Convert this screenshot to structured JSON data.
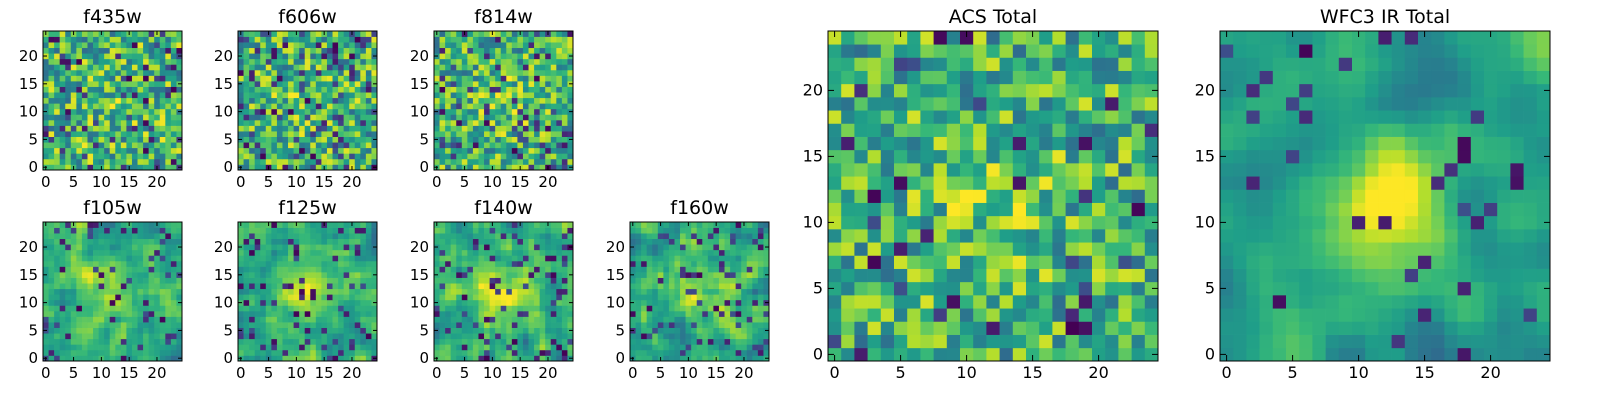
{
  "chart_data": [
    {
      "type": "heatmap",
      "title": "f435w",
      "xlim": [
        0,
        24
      ],
      "ylim": [
        0,
        24
      ],
      "xticks": [
        "0",
        "5",
        "10",
        "15",
        "20"
      ],
      "yticks": [
        "0",
        "5",
        "10",
        "15",
        "20"
      ],
      "colormap": "viridis",
      "seed": 11,
      "smooth": 0,
      "blob": 0.05,
      "dark": 0.1
    },
    {
      "type": "heatmap",
      "title": "f606w",
      "xlim": [
        0,
        24
      ],
      "ylim": [
        0,
        24
      ],
      "xticks": [
        "0",
        "5",
        "10",
        "15",
        "20"
      ],
      "yticks": [
        "0",
        "5",
        "10",
        "15",
        "20"
      ],
      "colormap": "viridis",
      "seed": 23,
      "smooth": 0,
      "blob": 0.1,
      "dark": 0.12
    },
    {
      "type": "heatmap",
      "title": "f814w",
      "xlim": [
        0,
        24
      ],
      "ylim": [
        0,
        24
      ],
      "xticks": [
        "0",
        "5",
        "10",
        "15",
        "20"
      ],
      "yticks": [
        "0",
        "5",
        "10",
        "15",
        "20"
      ],
      "colormap": "viridis",
      "seed": 37,
      "smooth": 0,
      "blob": 0.15,
      "dark": 0.1
    },
    {
      "type": "heatmap",
      "title": "f105w",
      "xlim": [
        0,
        24
      ],
      "ylim": [
        0,
        24
      ],
      "xticks": [
        "0",
        "5",
        "10",
        "15",
        "20"
      ],
      "yticks": [
        "0",
        "5",
        "10",
        "15",
        "20"
      ],
      "colormap": "viridis",
      "seed": 41,
      "smooth": 1,
      "blob": 0.35,
      "dark": 0.1
    },
    {
      "type": "heatmap",
      "title": "f125w",
      "xlim": [
        0,
        24
      ],
      "ylim": [
        0,
        24
      ],
      "xticks": [
        "0",
        "5",
        "10",
        "15",
        "20"
      ],
      "yticks": [
        "0",
        "5",
        "10",
        "15",
        "20"
      ],
      "colormap": "viridis",
      "seed": 53,
      "smooth": 1,
      "blob": 0.4,
      "dark": 0.1
    },
    {
      "type": "heatmap",
      "title": "f140w",
      "xlim": [
        0,
        24
      ],
      "ylim": [
        0,
        24
      ],
      "xticks": [
        "0",
        "5",
        "10",
        "15",
        "20"
      ],
      "yticks": [
        "0",
        "5",
        "10",
        "15",
        "20"
      ],
      "colormap": "viridis",
      "seed": 67,
      "smooth": 1,
      "blob": 0.4,
      "dark": 0.12
    },
    {
      "type": "heatmap",
      "title": "f160w",
      "xlim": [
        0,
        24
      ],
      "ylim": [
        0,
        24
      ],
      "xticks": [
        "0",
        "5",
        "10",
        "15",
        "20"
      ],
      "yticks": [
        "0",
        "5",
        "10",
        "15",
        "20"
      ],
      "colormap": "viridis",
      "seed": 79,
      "smooth": 1,
      "blob": 0.4,
      "dark": 0.1
    },
    {
      "type": "heatmap",
      "title": "ACS Total",
      "xlim": [
        0,
        24
      ],
      "ylim": [
        0,
        24
      ],
      "xticks": [
        "0",
        "5",
        "10",
        "15",
        "20"
      ],
      "yticks": [
        "0",
        "5",
        "10",
        "15",
        "20"
      ],
      "colormap": "viridis",
      "seed": 97,
      "smooth": 0,
      "blob": 0.2,
      "dark": 0.06
    },
    {
      "type": "heatmap",
      "title": "WFC3 IR Total",
      "xlim": [
        0,
        24
      ],
      "ylim": [
        0,
        24
      ],
      "xticks": [
        "0",
        "5",
        "10",
        "15",
        "20"
      ],
      "yticks": [
        "0",
        "5",
        "10",
        "15",
        "20"
      ],
      "colormap": "viridis",
      "seed": 101,
      "smooth": 2,
      "blob": 0.6,
      "dark": 0.06
    }
  ]
}
